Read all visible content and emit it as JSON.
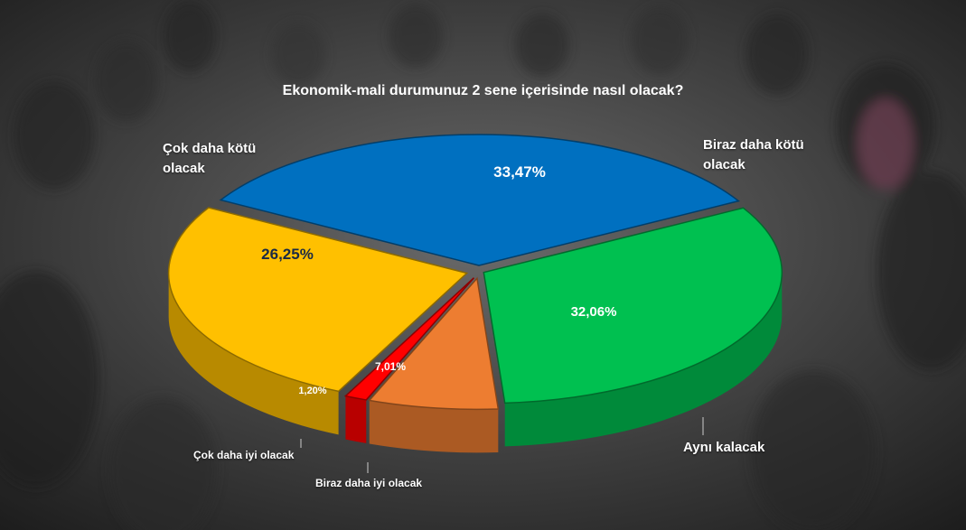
{
  "chart_data": {
    "type": "pie",
    "title": "Ekonomik-mali durumunuz 2 sene içerisinde nasıl olacak?",
    "slices": [
      {
        "label": "Biraz daha kötü olacak",
        "value": 33.47,
        "value_label": "33,47%",
        "color": "#0070c0"
      },
      {
        "label": "Aynı kalacak",
        "value": 32.06,
        "value_label": "32,06%",
        "color": "#00c050"
      },
      {
        "label": "Biraz daha iyi olacak",
        "value": 7.01,
        "value_label": "7,01%",
        "color": "#ed7d31"
      },
      {
        "label": "Çok daha iyi olacak",
        "value": 1.2,
        "value_label": "1,20%",
        "color": "#ff0000"
      },
      {
        "label": "Çok daha kötü olacak",
        "value": 26.25,
        "value_label": "26,25%",
        "color": "#ffc000"
      }
    ],
    "legend": "none"
  },
  "labels": {
    "cok_daha_kotu_line1": "Çok daha kötü",
    "cok_daha_kotu_line2": "olacak",
    "biraz_daha_kotu_line1": "Biraz daha kötü",
    "biraz_daha_kotu_line2": "olacak",
    "ayni_kalacak": "Aynı kalacak",
    "biraz_daha_iyi": "Biraz daha iyi olacak",
    "cok_daha_iyi": "Çok daha iyi olacak"
  }
}
